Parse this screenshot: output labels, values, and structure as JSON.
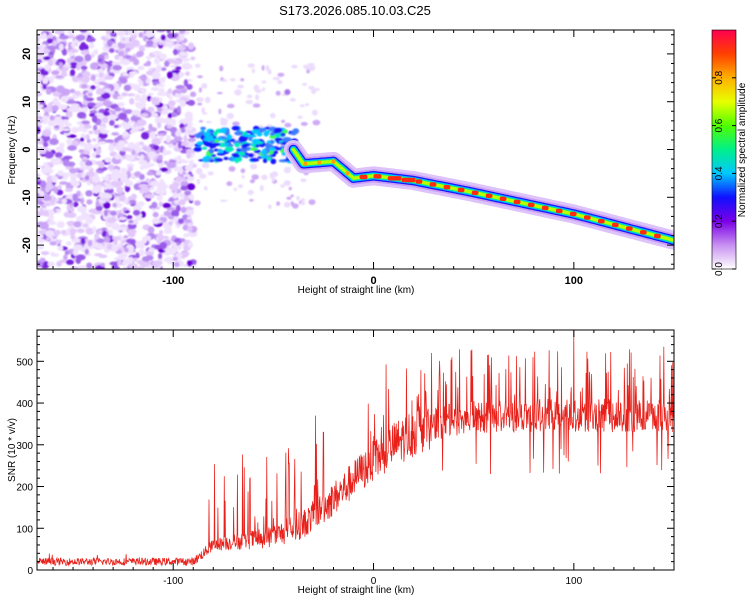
{
  "title": "S173.2026.085.10.03.C25",
  "chart_data": [
    {
      "type": "heatmap",
      "name": "spectrogram",
      "xlabel": "Height of straight line (km)",
      "ylabel": "Frequency (Hz)",
      "xlim": [
        -168,
        150
      ],
      "ylim": [
        -25,
        25
      ],
      "x_ticks": [
        {
          "v": -100,
          "label": "-100"
        },
        {
          "v": 0,
          "label": "0"
        },
        {
          "v": 100,
          "label": "100"
        }
      ],
      "y_ticks": [
        {
          "v": 20,
          "label": "20"
        },
        {
          "v": 10,
          "label": "10"
        },
        {
          "v": 0,
          "label": "0"
        },
        {
          "v": -10,
          "label": "-10"
        },
        {
          "v": -20,
          "label": "-20"
        }
      ],
      "noise_region_x": [
        -168,
        -90
      ],
      "signal_track": [
        {
          "x": -88,
          "y": 0
        },
        {
          "x": -40,
          "y": 0
        },
        {
          "x": -35,
          "y": -3
        },
        {
          "x": -20,
          "y": -2.5
        },
        {
          "x": -10,
          "y": -6
        },
        {
          "x": 0,
          "y": -5.5
        },
        {
          "x": 20,
          "y": -6.5
        },
        {
          "x": 50,
          "y": -9
        },
        {
          "x": 100,
          "y": -13.5
        },
        {
          "x": 150,
          "y": -19
        }
      ],
      "colorbar": {
        "label": "Normalized spectral amplitude",
        "range": [
          0,
          1
        ],
        "ticks": [
          {
            "v": 0,
            "label": "0.0"
          },
          {
            "v": 0.2,
            "label": "0.2"
          },
          {
            "v": 0.4,
            "label": "0.4"
          },
          {
            "v": 0.6,
            "label": "0.6"
          },
          {
            "v": 0.8,
            "label": "0.8"
          }
        ],
        "colors": [
          "#ffffff",
          "#c890f0",
          "#7a00e8",
          "#1010ff",
          "#00c8ff",
          "#00f08a",
          "#50ff00",
          "#e8ff00",
          "#ffb000",
          "#ff4000",
          "#ff0050"
        ]
      }
    },
    {
      "type": "line",
      "name": "snr",
      "xlabel": "Height of straight line (km)",
      "ylabel": "SNR (10 * v/v)",
      "xlim": [
        -168,
        150
      ],
      "ylim": [
        0,
        575
      ],
      "x_ticks": [
        {
          "v": -100,
          "label": "-100"
        },
        {
          "v": 0,
          "label": "0"
        },
        {
          "v": 100,
          "label": "100"
        }
      ],
      "y_ticks": [
        {
          "v": 0,
          "label": "0"
        },
        {
          "v": 100,
          "label": "100"
        },
        {
          "v": 200,
          "label": "200"
        },
        {
          "v": 300,
          "label": "300"
        },
        {
          "v": 400,
          "label": "400"
        },
        {
          "v": 500,
          "label": "500"
        }
      ],
      "series_color": "#e8201a",
      "trend": [
        {
          "x": -168,
          "y": 20
        },
        {
          "x": -90,
          "y": 20
        },
        {
          "x": -80,
          "y": 60
        },
        {
          "x": -50,
          "y": 80
        },
        {
          "x": -35,
          "y": 110
        },
        {
          "x": -20,
          "y": 170
        },
        {
          "x": -5,
          "y": 240
        },
        {
          "x": 10,
          "y": 300
        },
        {
          "x": 25,
          "y": 345
        },
        {
          "x": 45,
          "y": 365
        },
        {
          "x": 70,
          "y": 370
        },
        {
          "x": 150,
          "y": 370
        }
      ],
      "spike_peaks": [
        {
          "x": -29,
          "y": 370
        },
        {
          "x": -25,
          "y": 330
        },
        {
          "x": 29,
          "y": 520
        },
        {
          "x": 57,
          "y": 515
        },
        {
          "x": 100,
          "y": 575
        },
        {
          "x": 145,
          "y": 535
        }
      ]
    }
  ]
}
